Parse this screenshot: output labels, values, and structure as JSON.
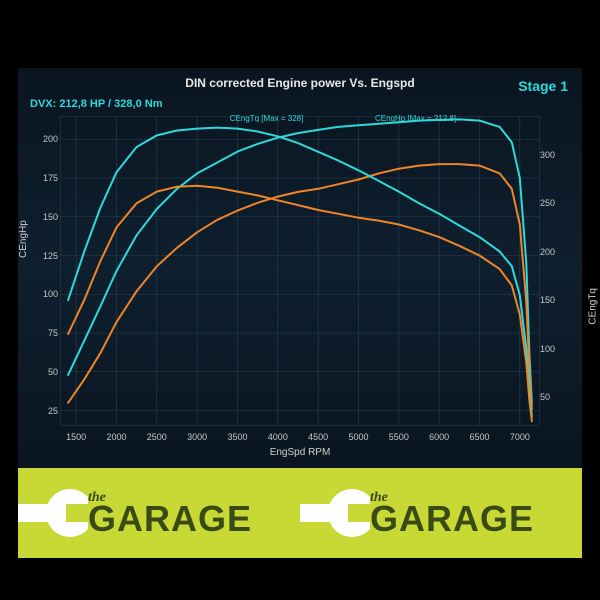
{
  "chart": {
    "type": "line",
    "title": "DIN corrected Engine power Vs. Engspd",
    "stage_label": "Stage 1",
    "dvx_label": "DVX:  212,8 HP / 328,0 Nm",
    "x_label": "EngSpd RPM",
    "y1_label": "CEngHp",
    "y2_label": "CEngTq",
    "background_color": "#0a1520",
    "grid_color": "#2a4050",
    "title_color": "#e8e8e8",
    "accent_color": "#2fd9db",
    "tick_color": "#c8c8c8",
    "title_fontsize": 12,
    "tick_fontsize": 9,
    "x_ticks": [
      1500,
      2000,
      2500,
      3000,
      3500,
      4000,
      4500,
      5000,
      5500,
      6000,
      6500,
      7000
    ],
    "y1_ticks": [
      25,
      50,
      75,
      100,
      125,
      150,
      175,
      200
    ],
    "y2_ticks": [
      50,
      100,
      150,
      200,
      250,
      300
    ],
    "xlim": [
      1300,
      7250
    ],
    "y1_lim": [
      15,
      215
    ],
    "y2_lim": [
      20,
      340
    ],
    "annotations": [
      {
        "text": "CEngTq [Max = 328]",
        "x_rpm": 3900,
        "y_hp": 210
      },
      {
        "text": "CEngHp [Max = 212.8]",
        "x_rpm": 5700,
        "y_hp": 210
      }
    ],
    "series": [
      {
        "name": "hp_tuned",
        "axis": "y1",
        "color": "#2fd9db",
        "width": 2,
        "points": [
          [
            1400,
            48
          ],
          [
            1600,
            70
          ],
          [
            1800,
            92
          ],
          [
            2000,
            115
          ],
          [
            2250,
            138
          ],
          [
            2500,
            155
          ],
          [
            2750,
            168
          ],
          [
            3000,
            178
          ],
          [
            3250,
            185
          ],
          [
            3500,
            192
          ],
          [
            3750,
            197
          ],
          [
            4000,
            201
          ],
          [
            4250,
            204
          ],
          [
            4500,
            206
          ],
          [
            4750,
            208
          ],
          [
            5000,
            209
          ],
          [
            5250,
            210
          ],
          [
            5500,
            211
          ],
          [
            5750,
            212
          ],
          [
            6000,
            212.5
          ],
          [
            6250,
            212.8
          ],
          [
            6500,
            212
          ],
          [
            6750,
            208
          ],
          [
            6900,
            198
          ],
          [
            7000,
            175
          ],
          [
            7080,
            120
          ],
          [
            7120,
            60
          ],
          [
            7150,
            30
          ]
        ]
      },
      {
        "name": "hp_stock",
        "axis": "y1",
        "color": "#f08528",
        "width": 2,
        "points": [
          [
            1400,
            30
          ],
          [
            1600,
            45
          ],
          [
            1800,
            62
          ],
          [
            2000,
            82
          ],
          [
            2250,
            102
          ],
          [
            2500,
            118
          ],
          [
            2750,
            130
          ],
          [
            3000,
            140
          ],
          [
            3250,
            148
          ],
          [
            3500,
            154
          ],
          [
            3750,
            159
          ],
          [
            4000,
            163
          ],
          [
            4250,
            166
          ],
          [
            4500,
            168
          ],
          [
            4750,
            171
          ],
          [
            5000,
            174
          ],
          [
            5250,
            178
          ],
          [
            5500,
            181
          ],
          [
            5750,
            183
          ],
          [
            6000,
            184
          ],
          [
            6250,
            184
          ],
          [
            6500,
            183
          ],
          [
            6750,
            178
          ],
          [
            6900,
            168
          ],
          [
            7000,
            145
          ],
          [
            7080,
            95
          ],
          [
            7120,
            50
          ],
          [
            7150,
            26
          ]
        ]
      },
      {
        "name": "tq_tuned",
        "axis": "y2",
        "color": "#2fd9db",
        "width": 2,
        "points": [
          [
            1400,
            150
          ],
          [
            1600,
            200
          ],
          [
            1800,
            245
          ],
          [
            2000,
            282
          ],
          [
            2250,
            308
          ],
          [
            2500,
            320
          ],
          [
            2750,
            325
          ],
          [
            3000,
            327
          ],
          [
            3250,
            328
          ],
          [
            3500,
            327
          ],
          [
            3750,
            324
          ],
          [
            4000,
            319
          ],
          [
            4250,
            312
          ],
          [
            4500,
            303
          ],
          [
            4750,
            294
          ],
          [
            5000,
            284
          ],
          [
            5250,
            273
          ],
          [
            5500,
            262
          ],
          [
            5750,
            250
          ],
          [
            6000,
            239
          ],
          [
            6250,
            227
          ],
          [
            6500,
            215
          ],
          [
            6750,
            200
          ],
          [
            6900,
            185
          ],
          [
            7000,
            155
          ],
          [
            7080,
            100
          ],
          [
            7120,
            55
          ],
          [
            7150,
            30
          ]
        ]
      },
      {
        "name": "tq_stock",
        "axis": "y2",
        "color": "#f08528",
        "width": 2,
        "points": [
          [
            1400,
            115
          ],
          [
            1600,
            150
          ],
          [
            1800,
            190
          ],
          [
            2000,
            225
          ],
          [
            2250,
            250
          ],
          [
            2500,
            262
          ],
          [
            2750,
            267
          ],
          [
            3000,
            268
          ],
          [
            3250,
            266
          ],
          [
            3500,
            262
          ],
          [
            3750,
            258
          ],
          [
            4000,
            253
          ],
          [
            4250,
            248
          ],
          [
            4500,
            243
          ],
          [
            4750,
            239
          ],
          [
            5000,
            235
          ],
          [
            5250,
            232
          ],
          [
            5500,
            228
          ],
          [
            5750,
            222
          ],
          [
            6000,
            215
          ],
          [
            6250,
            206
          ],
          [
            6500,
            196
          ],
          [
            6750,
            182
          ],
          [
            6900,
            165
          ],
          [
            7000,
            135
          ],
          [
            7080,
            85
          ],
          [
            7120,
            45
          ],
          [
            7150,
            25
          ]
        ]
      }
    ]
  },
  "footer": {
    "background": "#c8d936",
    "text_color": "#3a4a15",
    "the": "the",
    "garage": "GARAGE"
  }
}
